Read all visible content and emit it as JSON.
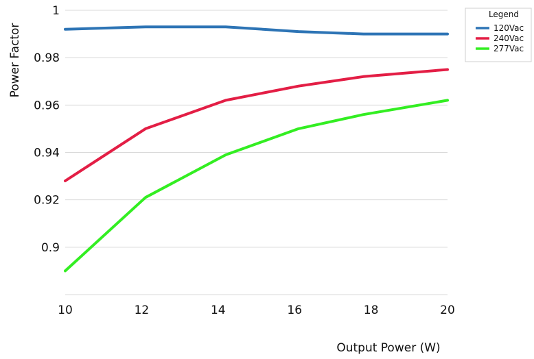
{
  "chart_data": {
    "type": "line",
    "title": "",
    "xlabel": "Output Power (W)",
    "ylabel": "Power Factor",
    "x": [
      10,
      12.1,
      14.2,
      16.1,
      17.8,
      20
    ],
    "xlim": [
      10,
      20
    ],
    "ylim": [
      0.88,
      1
    ],
    "x_ticks": [
      10,
      12,
      14,
      16,
      18,
      20
    ],
    "y_ticks": [
      0.9,
      0.92,
      0.94,
      0.96,
      0.98,
      1
    ],
    "y_tick_labels": [
      "0.9",
      "0.92",
      "0.94",
      "0.96",
      "0.98",
      "1"
    ],
    "grid": "horizontal",
    "legend": {
      "title": "Legend",
      "placement": "top-right"
    },
    "series": [
      {
        "name": "120Vac",
        "color": "#2d74b5",
        "values": [
          0.992,
          0.993,
          0.993,
          0.991,
          0.99,
          0.99
        ]
      },
      {
        "name": "240Vac",
        "color": "#e31e45",
        "values": [
          0.928,
          0.95,
          0.962,
          0.968,
          0.972,
          0.975
        ]
      },
      {
        "name": "277Vac",
        "color": "#33ee22",
        "values": [
          0.89,
          0.921,
          0.939,
          0.95,
          0.956,
          0.962
        ]
      }
    ]
  }
}
